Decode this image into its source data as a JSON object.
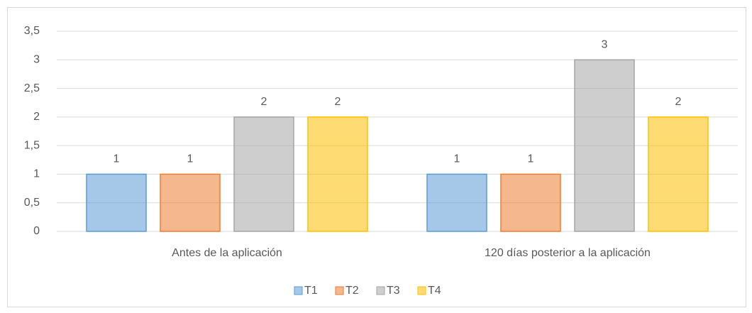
{
  "chart_data": {
    "type": "bar",
    "categories": [
      "Antes de la aplicación",
      "120 días posterior a la aplicación"
    ],
    "series": [
      {
        "name": "T1",
        "color": "#5b9bd5",
        "values": [
          1,
          1
        ]
      },
      {
        "name": "T2",
        "color": "#ed7d31",
        "values": [
          1,
          1
        ]
      },
      {
        "name": "T3",
        "color": "#a5a5a5",
        "values": [
          2,
          3
        ]
      },
      {
        "name": "T4",
        "color": "#ffc000",
        "values": [
          2,
          2
        ]
      }
    ],
    "ylim": [
      0,
      3.5
    ],
    "yticks": [
      0,
      {
        "value": 0.5,
        "label": "0,5"
      },
      1,
      {
        "value": 1.5,
        "label": "1,5"
      },
      2,
      {
        "value": 2.5,
        "label": "2,5"
      },
      3,
      {
        "value": 3.5,
        "label": "3,5"
      }
    ],
    "grid": true,
    "legend": "bottom"
  }
}
